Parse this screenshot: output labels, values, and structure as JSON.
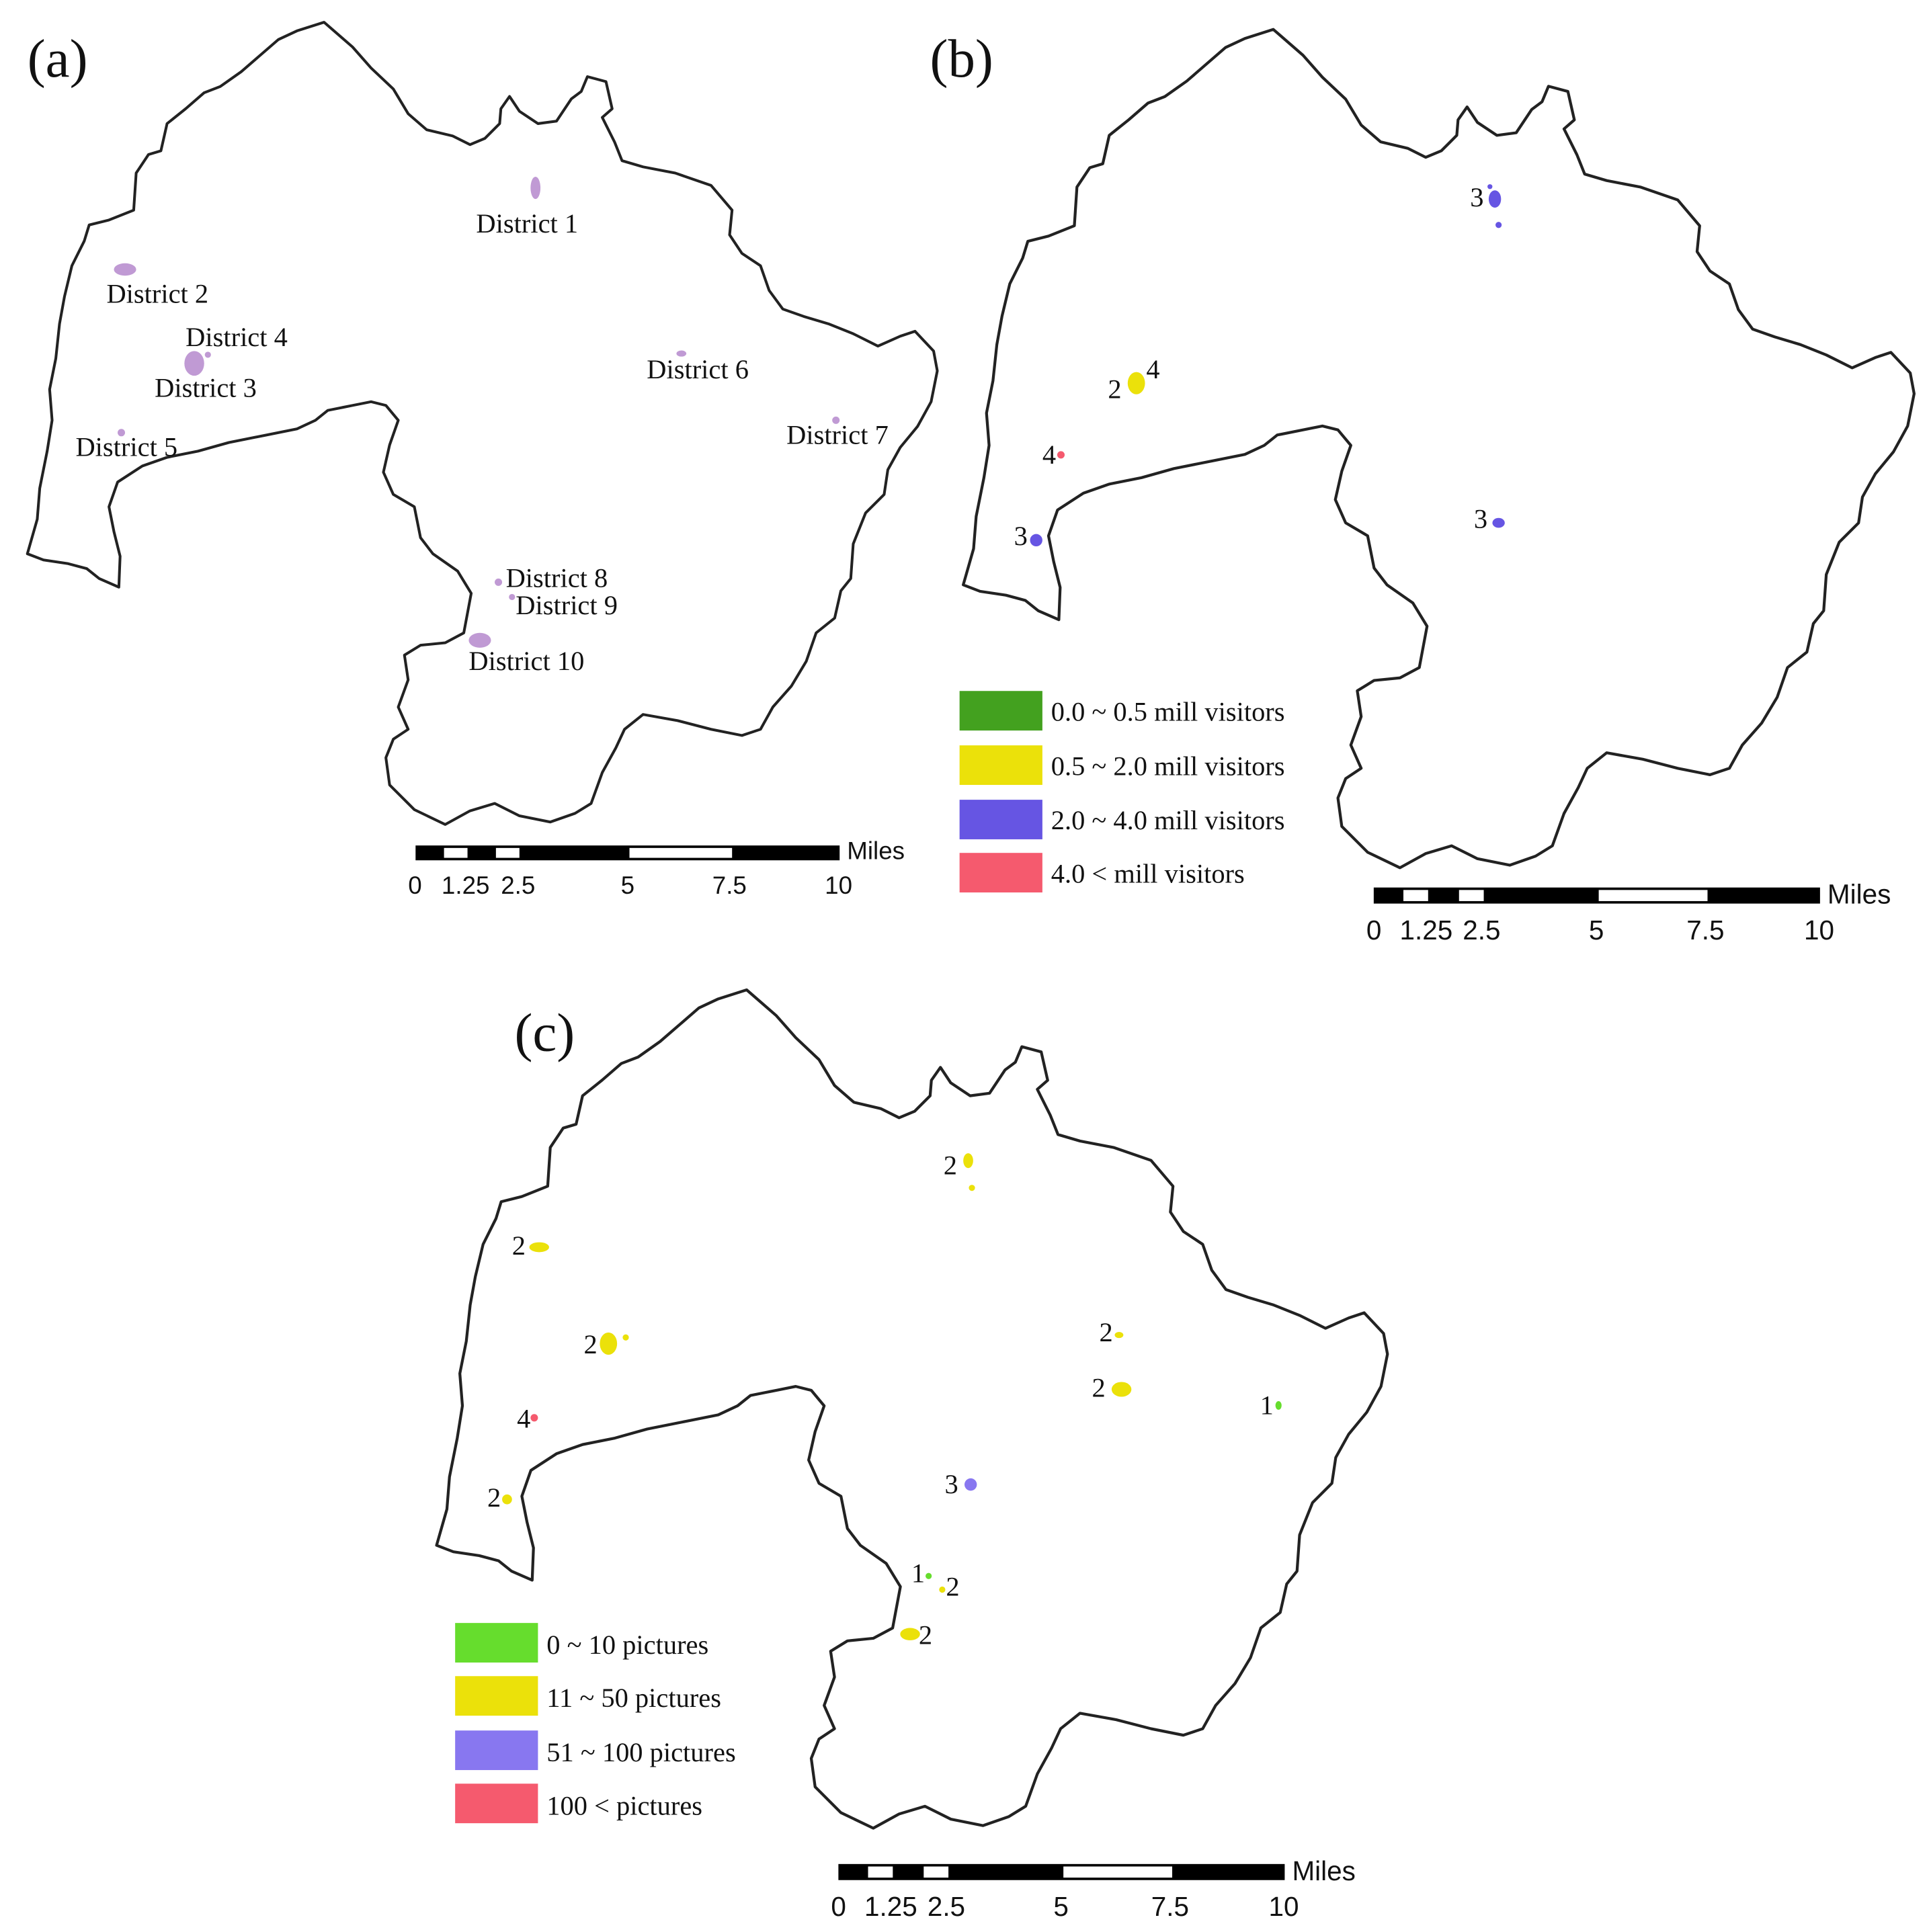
{
  "panels": [
    {
      "id": "a",
      "label": "(a)",
      "districts": [
        {
          "label": "District 1",
          "color": "#c09ad4"
        },
        {
          "label": "District 2",
          "color": "#c09ad4"
        },
        {
          "label": "District 4",
          "color": "#c09ad4"
        },
        {
          "label": "District 3",
          "color": "#c09ad4"
        },
        {
          "label": "District 6",
          "color": "#c09ad4"
        },
        {
          "label": "District 5",
          "color": "#c09ad4"
        },
        {
          "label": "District 7",
          "color": "#c09ad4"
        },
        {
          "label": "District 8",
          "color": "#c09ad4"
        },
        {
          "label": "District 9",
          "color": "#c09ad4"
        },
        {
          "label": "District 10",
          "color": "#c09ad4"
        }
      ],
      "scale_bar": {
        "unit": "Miles",
        "ticks": [
          "0",
          "1.25",
          "2.5",
          "5",
          "7.5",
          "10"
        ]
      }
    },
    {
      "id": "b",
      "label": "(b)",
      "markers": [
        {
          "class": "3",
          "district": "District 1"
        },
        {
          "class": "4",
          "district": "District 4"
        },
        {
          "class": "2",
          "district": "District 3"
        },
        {
          "class": "4",
          "district": "District 5"
        },
        {
          "class": "3",
          "district": "District 10"
        },
        {
          "class": "3",
          "district": "District 7"
        }
      ],
      "legend": [
        {
          "label": "0.0 ~ 0.5 mill visitors",
          "color": "#43a11f"
        },
        {
          "label": "0.5 ~ 2.0 mill visitors",
          "color": "#ebe10a"
        },
        {
          "label": "2.0 ~ 4.0 mill visitors",
          "color": "#6655e3"
        },
        {
          "label": "4.0 < mill visitors",
          "color": "#f55a6e"
        }
      ],
      "scale_bar": {
        "unit": "Miles",
        "ticks": [
          "0",
          "1.25",
          "2.5",
          "5",
          "7.5",
          "10"
        ]
      }
    },
    {
      "id": "c",
      "label": "(c)",
      "markers": [
        {
          "class": "2",
          "district": "District 1"
        },
        {
          "class": "2",
          "district": "District 2"
        },
        {
          "class": "2",
          "district": "District 3"
        },
        {
          "class": "4",
          "district": "District 5"
        },
        {
          "class": "2",
          "district": "District 6"
        },
        {
          "class": "2",
          "district": "District 6b"
        },
        {
          "class": "1",
          "district": "District 7"
        },
        {
          "class": "3",
          "district": "District 8"
        },
        {
          "class": "1",
          "district": "District 9"
        },
        {
          "class": "2",
          "district": "District 9b"
        },
        {
          "class": "2",
          "district": "District 10"
        },
        {
          "class": "2",
          "district": "District 10b"
        }
      ],
      "legend": [
        {
          "label": "0 ~ 10 pictures",
          "color": "#66dd2d"
        },
        {
          "label": "11 ~ 50 pictures",
          "color": "#ebe10a"
        },
        {
          "label": "51 ~ 100 pictures",
          "color": "#8877f0"
        },
        {
          "label": "100 < pictures",
          "color": "#f55a6e"
        }
      ],
      "scale_bar": {
        "unit": "Miles",
        "ticks": [
          "0",
          "1.25",
          "2.5",
          "5",
          "7.5",
          "10"
        ]
      }
    }
  ]
}
